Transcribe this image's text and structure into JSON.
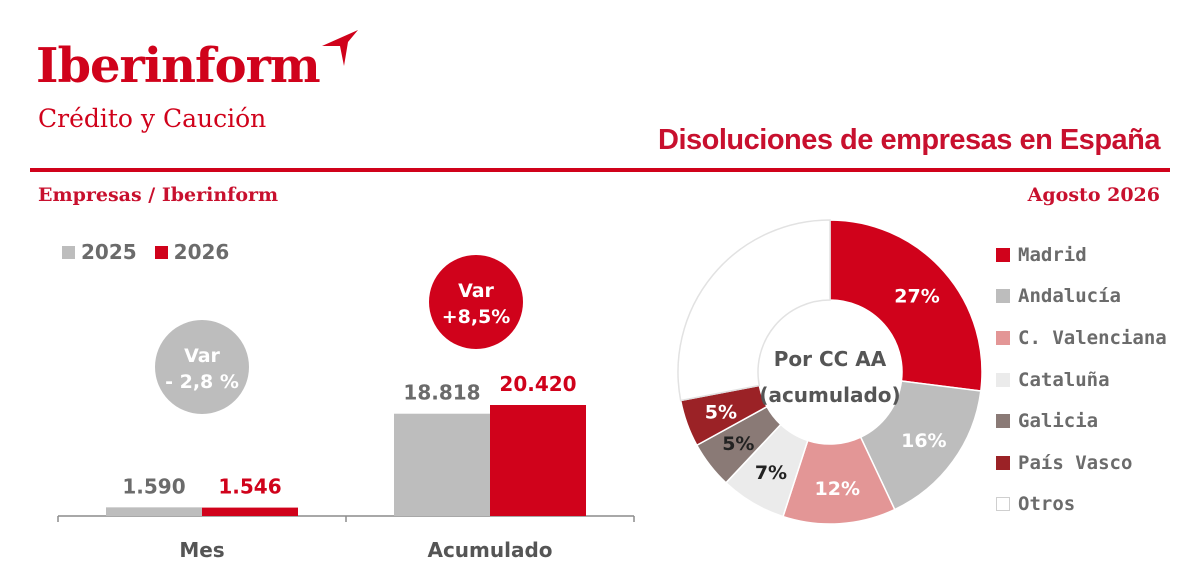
{
  "logo": {
    "name": "Iberinform",
    "tagline": "Crédito y Caución"
  },
  "title": "Disoluciones de empresas en España",
  "source": "Empresas / Iberinform",
  "date": "Agosto 2026",
  "colors": {
    "red": "#d0021b",
    "gray": "#bdbdbd",
    "axis": "#8c8c8c",
    "text_gray": "#6b6b6b"
  },
  "chart_data": [
    {
      "type": "bar",
      "categories": [
        "Mes",
        "Acumulado"
      ],
      "series": [
        {
          "name": "2025",
          "values": [
            1590,
            18818
          ],
          "labels": [
            "1.590",
            "18.818"
          ],
          "color": "#bdbdbd"
        },
        {
          "name": "2026",
          "values": [
            1546,
            20420
          ],
          "labels": [
            "1.546",
            "20.420"
          ],
          "color": "#d0021b"
        }
      ],
      "annotations": [
        {
          "category": "Mes",
          "lines": [
            "Var",
            "- 2,8 %"
          ],
          "color": "#bdbdbd"
        },
        {
          "category": "Acumulado",
          "lines": [
            "Var",
            "+8,5%"
          ],
          "color": "#d0021b"
        }
      ],
      "ylim": [
        0,
        22000
      ]
    },
    {
      "type": "pie",
      "center_label": [
        "Por CC AA",
        "(acumulado)"
      ],
      "slices": [
        {
          "label": "Madrid",
          "value": 27,
          "text": "27%",
          "color": "#d0021b",
          "text_color": "#ffffff"
        },
        {
          "label": "Andalucía",
          "value": 16,
          "text": "16%",
          "color": "#bdbdbd",
          "text_color": "#ffffff"
        },
        {
          "label": "C. Valenciana",
          "value": 12,
          "text": "12%",
          "color": "#e39696",
          "text_color": "#ffffff"
        },
        {
          "label": "Cataluña",
          "value": 7,
          "text": "7%",
          "color": "#ebebeb",
          "text_color": "#222222"
        },
        {
          "label": "Galicia",
          "value": 5,
          "text": "5%",
          "color": "#8a7a76",
          "text_color": "#222222"
        },
        {
          "label": "País Vasco",
          "value": 5,
          "text": "5%",
          "color": "#9b2226",
          "text_color": "#ffffff"
        },
        {
          "label": "Otros",
          "value": 28,
          "text": "",
          "color": "#ffffff",
          "text_color": "#222222"
        }
      ]
    }
  ]
}
